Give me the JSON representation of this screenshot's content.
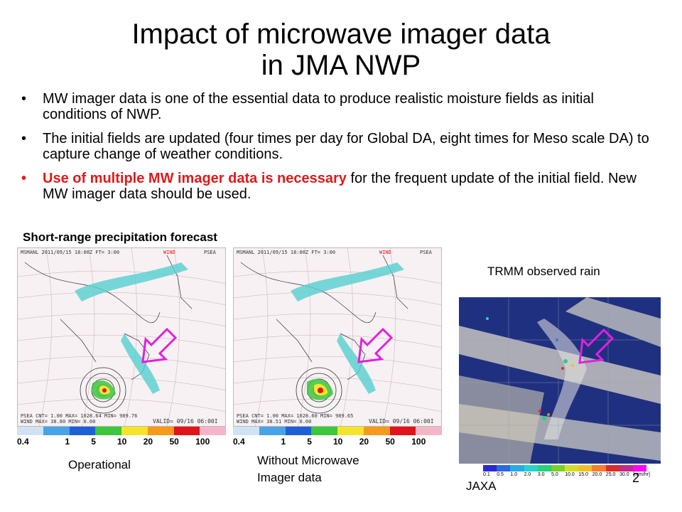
{
  "slide": {
    "title_line1": "Impact of microwave imager data",
    "title_line2": "in JMA NWP",
    "bullets": [
      {
        "text": "MW imager data is one of the essential data to produce realistic moisture fields as initial conditions of NWP."
      },
      {
        "text": "The initial fields are updated (four times per day for Global DA, eight times for Meso scale DA) to capture change of weather conditions."
      },
      {
        "highlight": "Use of multiple MW imager data is necessary",
        "rest": " for the frequent update of the initial field. New MW imager data should be used."
      }
    ],
    "section_label": "Short-range precipitation forecast",
    "bullet_symbol": "•",
    "page_number": "2",
    "highlight_color": "#e01a1a"
  },
  "maps": [
    {
      "header": "MSMANL 2011/09/15 18:00Z FT= 3:00",
      "wind_label": "WIND",
      "psea_label": "PSEA",
      "footer_line1": "PSEA  CNT= 1.00 MAX= 1028.64 MIN= 989.76",
      "footer_line2": "WIND  MAX= 38.80 MIN= 0.00",
      "valid": "VALID= 09/16 06:00I",
      "caption": "Operational"
    },
    {
      "header": "MSMANL 2011/09/15 18:00Z FT= 3:00",
      "wind_label": "WIND",
      "psea_label": "PSEA",
      "footer_line1": "PSEA  CNT= 1.00 MAX= 1028.60 MIN= 989.65",
      "footer_line2": "WIND  MAX= 38.51 MIN= 0.00",
      "valid": "VALID= 09/16 06:00I",
      "caption_line1": "Without Microwave",
      "caption_line2": "Imager data"
    }
  ],
  "forecast_colorbar": {
    "colors": [
      "#cfe3f5",
      "#4aa3e6",
      "#1f5fd6",
      "#3cc73c",
      "#f5e52a",
      "#f59a1a",
      "#e0141a",
      "#f5b5c8"
    ],
    "labels": [
      "0.4",
      "1",
      "5",
      "10",
      "20",
      "50",
      "100"
    ]
  },
  "observation": {
    "title": "TRMM observed rain",
    "credit": "JAXA",
    "colorbar_colors": [
      "#2a2ad0",
      "#2a6ae0",
      "#29a8e8",
      "#2ad0d0",
      "#2ad07a",
      "#7ad02a",
      "#d0e02a",
      "#f0c02a",
      "#f0802a",
      "#e02a2a",
      "#c02a8a",
      "#ff00ff"
    ],
    "ticks": [
      "0.1",
      "0.5",
      "1.0",
      "2.0",
      "3.0",
      "5.0",
      "10.0",
      "15.0",
      "20.0",
      "25.0",
      "30.0",
      "[mm/hr]"
    ]
  },
  "arrow_color": "#e020e0"
}
